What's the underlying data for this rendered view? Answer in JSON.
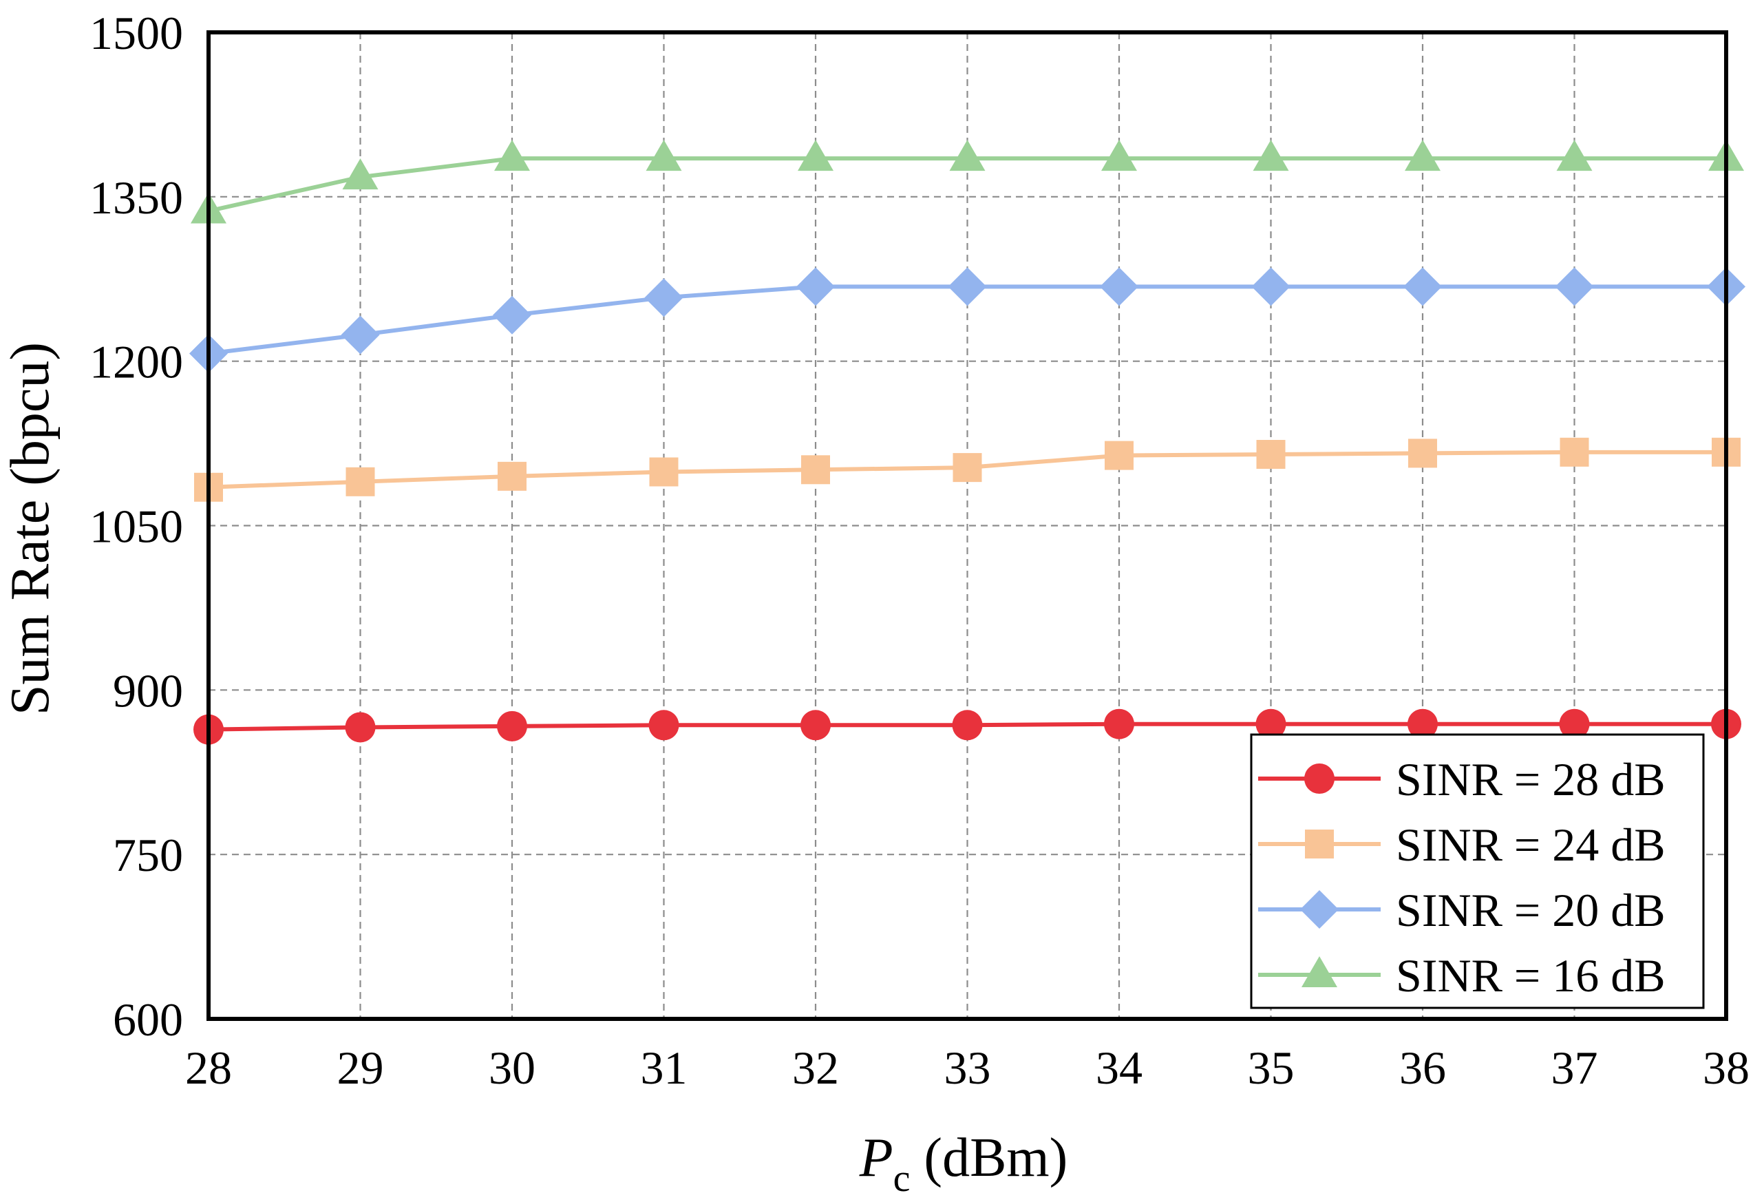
{
  "chart_data": {
    "type": "line",
    "title": "",
    "xlabel_var": "P",
    "xlabel_sub": "c",
    "xlabel_unit": " (dBm)",
    "ylabel": "Sum Rate (bpcu)",
    "x": [
      28,
      29,
      30,
      31,
      32,
      33,
      34,
      35,
      36,
      37,
      38
    ],
    "xlim": [
      28,
      38
    ],
    "ylim": [
      600,
      1500
    ],
    "xticks": [
      "28",
      "29",
      "30",
      "31",
      "32",
      "33",
      "34",
      "35",
      "36",
      "37",
      "38"
    ],
    "yticks": [
      "600",
      "750",
      "900",
      "1050",
      "1200",
      "1350",
      "1500"
    ],
    "ytick_values": [
      600,
      750,
      900,
      1050,
      1200,
      1350,
      1500
    ],
    "grid": true,
    "legend_position": "bottom-right",
    "series": [
      {
        "name": "SINR = 28 dB",
        "color": "#e8323c",
        "marker": "circle",
        "values": [
          864,
          866,
          867,
          868,
          868,
          868,
          869,
          869,
          869,
          869,
          869
        ]
      },
      {
        "name": "SINR = 24 dB",
        "color": "#f9c496",
        "marker": "square",
        "values": [
          1085,
          1090,
          1095,
          1099,
          1101,
          1103,
          1114,
          1115,
          1116,
          1117,
          1117
        ]
      },
      {
        "name": "SINR = 20 dB",
        "color": "#93b4ee",
        "marker": "diamond",
        "values": [
          1207,
          1224,
          1242,
          1258,
          1268,
          1268,
          1268,
          1268,
          1268,
          1268,
          1268
        ]
      },
      {
        "name": "SINR = 16 dB",
        "color": "#9bd196",
        "marker": "triangle",
        "values": [
          1337,
          1368,
          1385,
          1385,
          1385,
          1385,
          1385,
          1385,
          1385,
          1385,
          1385
        ]
      }
    ]
  }
}
